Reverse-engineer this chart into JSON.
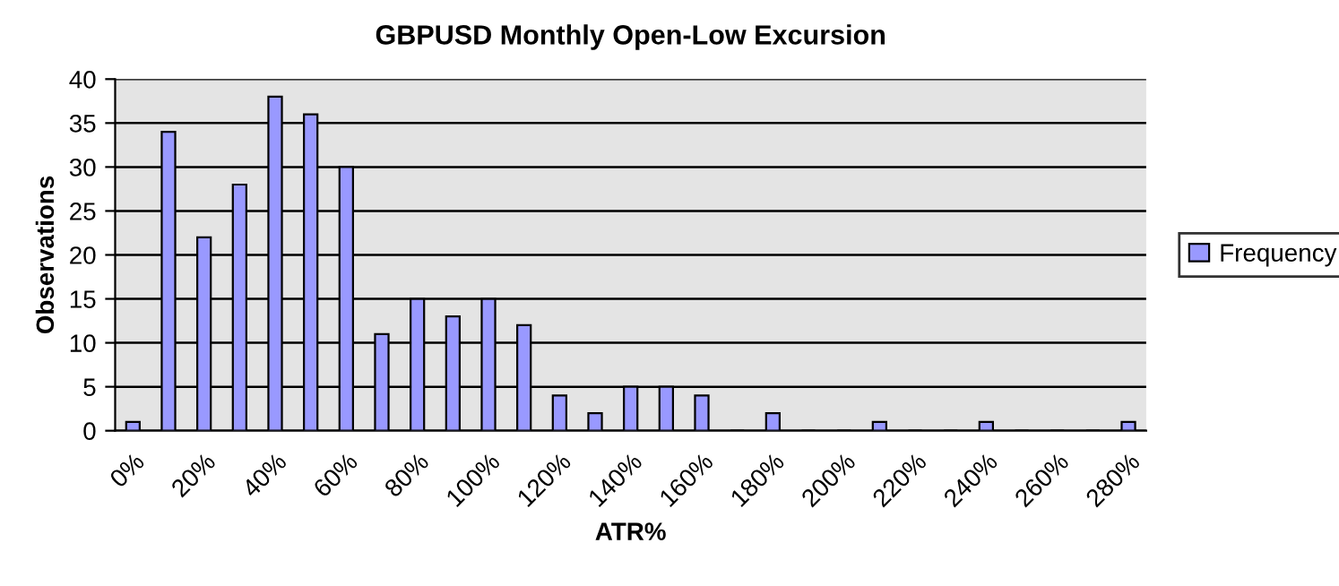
{
  "chart_data": {
    "type": "bar",
    "title": "GBPUSD Monthly Open-Low Excursion",
    "xlabel": "ATR%",
    "ylabel": "Observations",
    "categories": [
      "0%",
      null,
      "20%",
      null,
      "40%",
      null,
      "60%",
      null,
      "80%",
      null,
      "100%",
      null,
      "120%",
      null,
      "140%",
      null,
      "160%",
      null,
      "180%",
      null,
      "200%",
      null,
      "220%",
      null,
      "240%",
      null,
      "260%",
      null,
      "280%"
    ],
    "series": [
      {
        "name": "Frequency",
        "color": "#9999ff",
        "values": [
          1,
          34,
          22,
          28,
          38,
          36,
          30,
          11,
          15,
          13,
          15,
          12,
          4,
          2,
          5,
          5,
          4,
          0,
          2,
          0,
          0,
          1,
          0,
          0,
          1,
          0,
          0,
          0,
          1
        ]
      }
    ],
    "ylim": [
      0,
      40
    ],
    "yticks": [
      0,
      5,
      10,
      15,
      20,
      25,
      30,
      35,
      40
    ],
    "grid": "y",
    "legend": "right"
  }
}
